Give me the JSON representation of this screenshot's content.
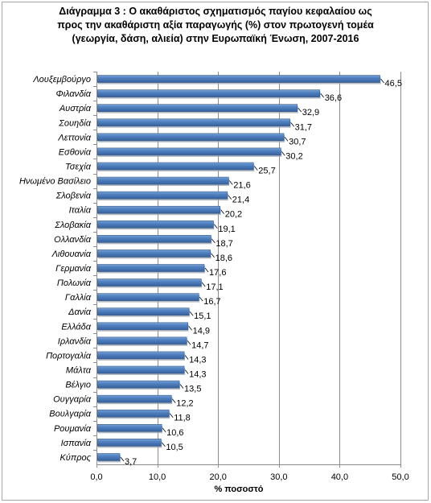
{
  "chart_data": {
    "type": "bar",
    "orientation": "horizontal",
    "title_lines": [
      "Διάγραμμα 3 : Ο ακαθάριστος σχηματισμός παγίου κεφαλαίου ως",
      "προς την ακαθάριστη αξία παραγωγής (%) στον πρωτογενή τομέα",
      "(γεωργία, δάση, αλιεία) στην Ευρωπαϊκή Ένωση, 2007-2016"
    ],
    "xlabel": "% ποσοστό",
    "ylabel": "",
    "xlim": [
      0,
      50
    ],
    "xticks": [
      "0,0",
      "10,0",
      "20,0",
      "30,0",
      "40,0",
      "50,0"
    ],
    "grid": true,
    "legend": "none",
    "bar_color": "#4f81bd",
    "categories": [
      "Λουξεμβούργο",
      "Φιλανδία",
      "Αυστρία",
      "Σουηδία",
      "Λεττονία",
      "Εσθονία",
      "Τσεχία",
      "Ηνωμένο Βασίλειο",
      "Σλοβενία",
      "Ιταλία",
      "Σλοβακία",
      "Ολλανδία",
      "Λιθουανία",
      "Γερμανία",
      "Πολωνία",
      "Γαλλία",
      "Δανία",
      "Ελλάδα",
      "Ιρλανδία",
      "Πορτογαλία",
      "Μάλτα",
      "Βέλγιο",
      "Ουγγαρία",
      "Βουλγαρία",
      "Ρουμανία",
      "Ισπανία",
      "Κύπρος"
    ],
    "values": [
      46.5,
      36.6,
      32.9,
      31.7,
      30.7,
      30.2,
      25.7,
      21.6,
      21.4,
      20.2,
      19.1,
      18.7,
      18.6,
      17.6,
      17.1,
      16.7,
      15.1,
      14.9,
      14.7,
      14.3,
      14.3,
      13.5,
      12.2,
      11.8,
      10.6,
      10.5,
      3.7
    ],
    "value_labels": [
      "46,5",
      "36,6",
      "32,9",
      "31,7",
      "30,7",
      "30,2",
      "25,7",
      "21,6",
      "21,4",
      "20,2",
      "19,1",
      "18,7",
      "18,6",
      "17,6",
      "17,1",
      "16,7",
      "15,1",
      "14,9",
      "14,7",
      "14,3",
      "14,3",
      "13,5",
      "12,2",
      "11,8",
      "10,6",
      "10,5",
      "3,7"
    ]
  }
}
